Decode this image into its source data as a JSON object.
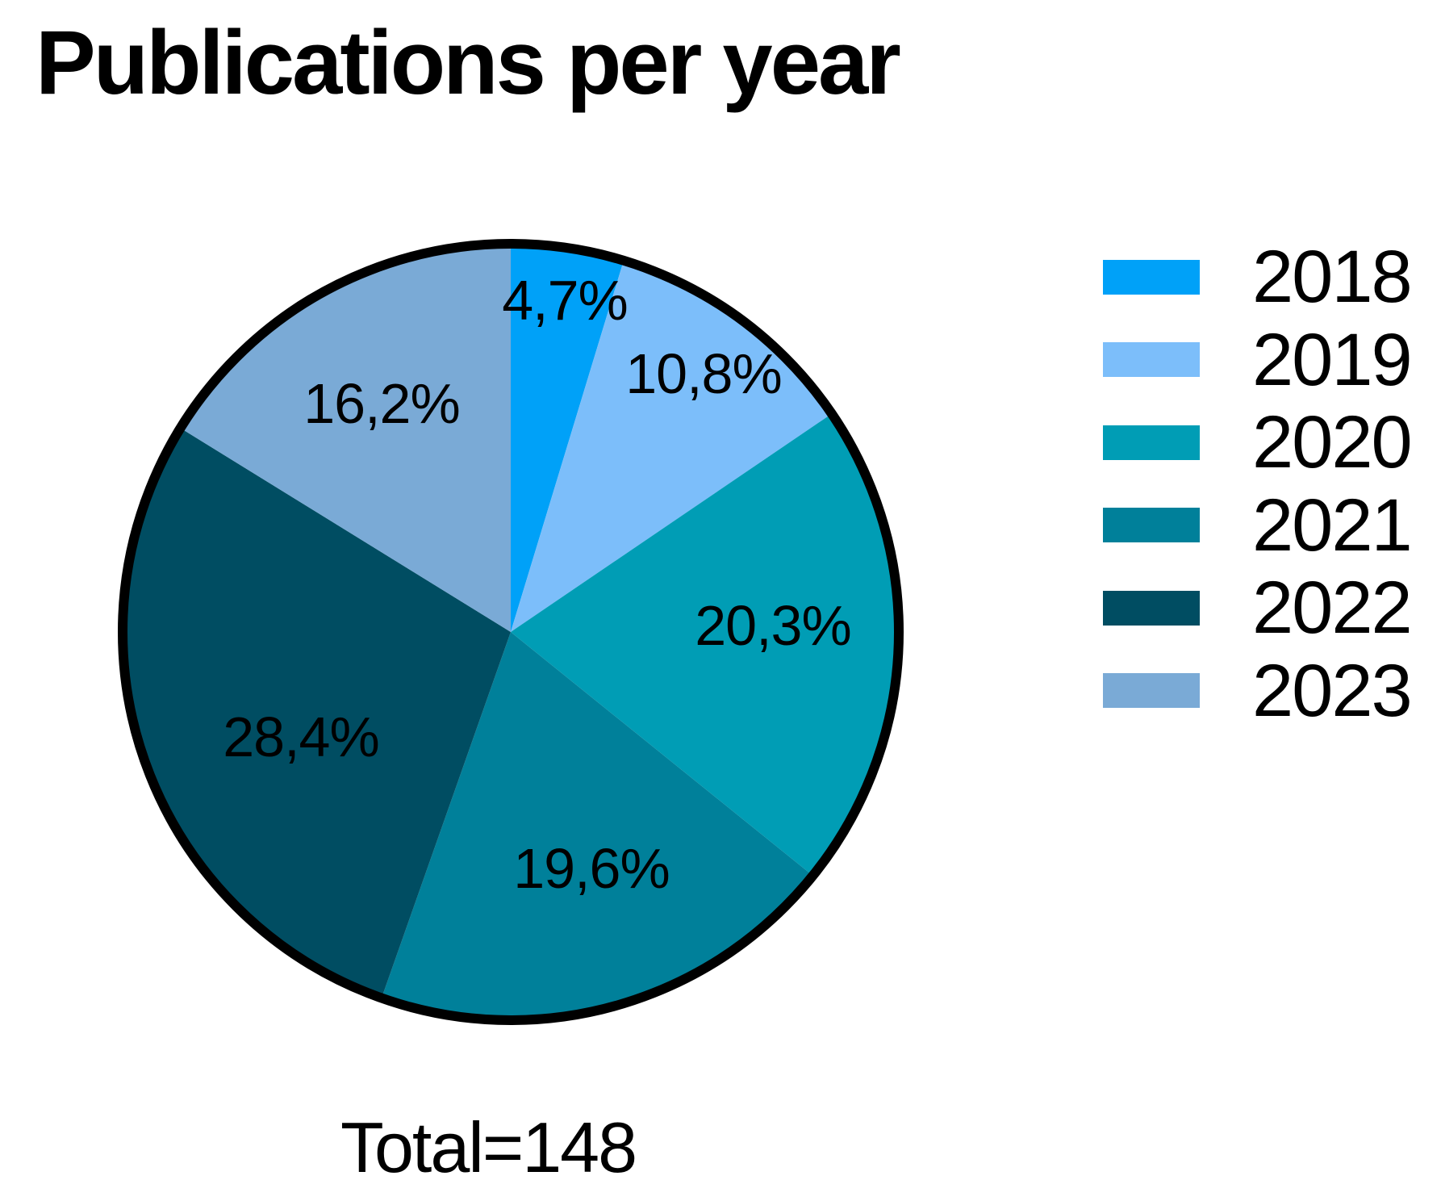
{
  "chart_data": {
    "type": "pie",
    "title": "Publications per year",
    "total": 148,
    "total_label": "Total=148",
    "value_unit": "%",
    "decimal_separator": ",",
    "start_angle_deg": 0,
    "direction": "clockwise",
    "legend_position": "right",
    "outline_color": "#000000",
    "slices": [
      {
        "label": "2018",
        "percent": 4.7,
        "display": "4,7%",
        "color": "#00A1F8"
      },
      {
        "label": "2019",
        "percent": 10.8,
        "display": "10,8%",
        "color": "#7CBEFA"
      },
      {
        "label": "2020",
        "percent": 20.3,
        "display": "20,3%",
        "color": "#009DB5"
      },
      {
        "label": "2021",
        "percent": 19.6,
        "display": "19,6%",
        "color": "#00809A"
      },
      {
        "label": "2022",
        "percent": 28.4,
        "display": "28,4%",
        "color": "#004D62"
      },
      {
        "label": "2023",
        "percent": 16.2,
        "display": "16,2%",
        "color": "#7AAAD6"
      }
    ]
  }
}
